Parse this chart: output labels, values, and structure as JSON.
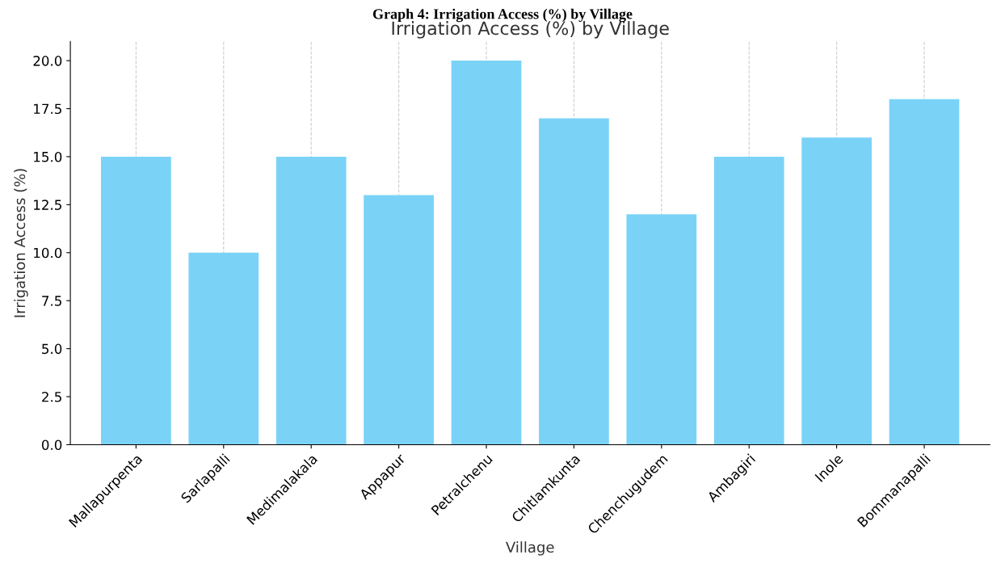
{
  "chart_data": {
    "type": "bar",
    "title": "Graph 4: Irrigation Access (%) by Village",
    "subtitle": "Irrigation Access (%) by Village",
    "xlabel": "Village",
    "ylabel": "Irrigation Access (%)",
    "categories": [
      "Mallapurpenta",
      "Sarlapalli",
      "Medimalakala",
      "Appapur",
      "Petralchenu",
      "Chitlamkunta",
      "Chenchugudem",
      "Ambagiri",
      "Inole",
      "Bommanapalli"
    ],
    "values": [
      15,
      10,
      15,
      13,
      20,
      17,
      12,
      15,
      16,
      18
    ],
    "color": "#7ad3f7",
    "ylim": [
      0,
      21
    ],
    "yticks": [
      {
        "value": 0,
        "label": "0.0"
      },
      {
        "value": 2.5,
        "label": "2.5"
      },
      {
        "value": 5,
        "label": "5.0"
      },
      {
        "value": 7.5,
        "label": "7.5"
      },
      {
        "value": 10,
        "label": "10.0"
      },
      {
        "value": 12.5,
        "label": "12.5"
      },
      {
        "value": 15,
        "label": "15.0"
      },
      {
        "value": 17.5,
        "label": "17.5"
      },
      {
        "value": 20,
        "label": "20.0"
      }
    ],
    "grid": "x",
    "legend": false
  }
}
